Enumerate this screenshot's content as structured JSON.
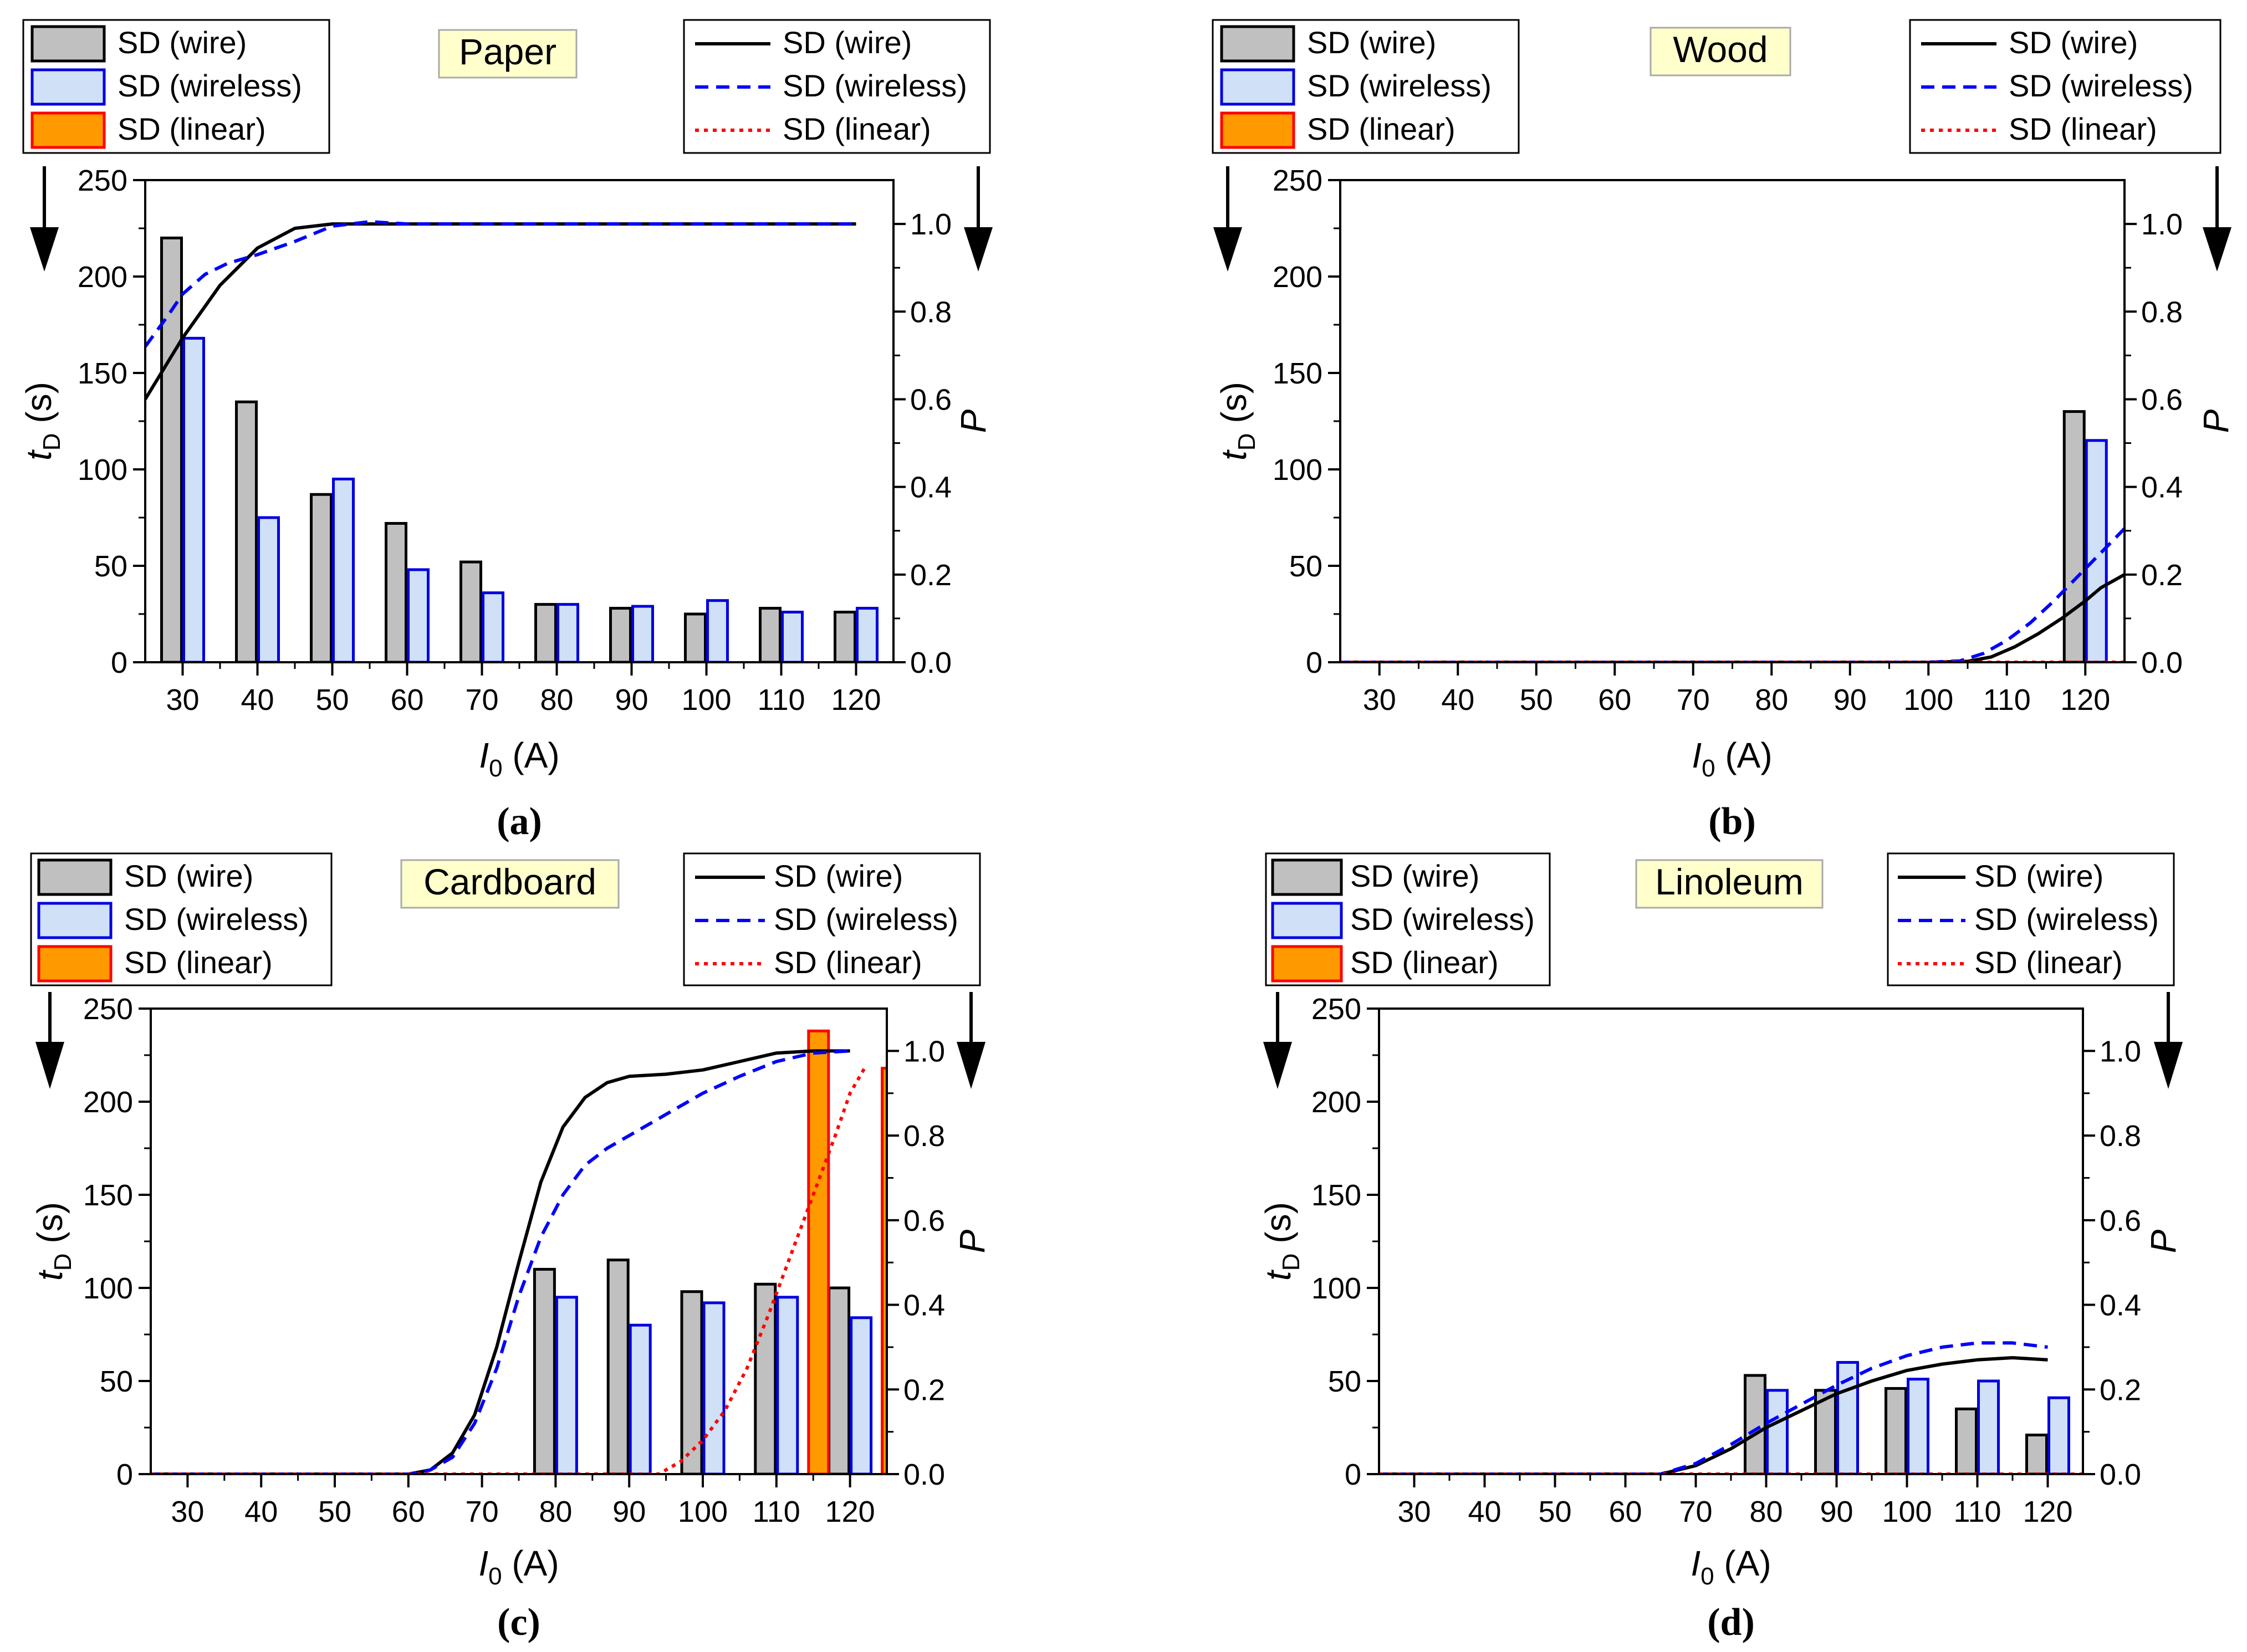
{
  "figure": {
    "colors": {
      "wire_bar_fill": "#c0c0c0",
      "wire_bar_edge": "#000000",
      "wireless_bar_fill": "#cfe0f7",
      "wireless_bar_edge": "#0000e0",
      "linear_bar_fill": "#ff9900",
      "linear_bar_edge": "#ff0000",
      "wire_line": "#000000",
      "wireless_line": "#0000ff",
      "linear_line": "#ff0000",
      "material_box": "#ffffcc"
    }
  },
  "chart_data": [
    {
      "type": "bar+line",
      "panel_label": "(a)",
      "title": "Paper",
      "xlabel_italic": "I",
      "xlabel_sub": "0",
      "xlabel_unit": "(A)",
      "ylabel_italic": "t",
      "ylabel_sub": "D",
      "ylabel_unit": "(s)",
      "y2label": "P",
      "xlim": [
        25,
        125
      ],
      "ylim": [
        0,
        250
      ],
      "y2lim": [
        0,
        1.1
      ],
      "xticks": [
        30,
        40,
        50,
        60,
        70,
        80,
        90,
        100,
        110,
        120
      ],
      "yticks": [
        0,
        50,
        100,
        150,
        200,
        250
      ],
      "y2ticks": [
        "0.0",
        "0.2",
        "0.4",
        "0.6",
        "0.8",
        "1.0"
      ],
      "legend_bars": [
        "SD (wire)",
        "SD (wireless)",
        "SD (linear)"
      ],
      "legend_lines": [
        "SD (wire)",
        "SD (wireless)",
        "SD (linear)"
      ],
      "bar_series": [
        {
          "name": "SD (wire)",
          "x": [
            30,
            40,
            50,
            60,
            70,
            80,
            90,
            100,
            110,
            120
          ],
          "values": [
            220,
            135,
            87,
            72,
            52,
            30,
            28,
            25,
            28,
            26
          ]
        },
        {
          "name": "SD (wireless)",
          "x": [
            30,
            40,
            50,
            60,
            70,
            80,
            90,
            100,
            110,
            120
          ],
          "values": [
            168,
            75,
            95,
            48,
            36,
            30,
            29,
            32,
            26,
            28
          ]
        },
        {
          "name": "SD (linear)",
          "x": [],
          "values": []
        }
      ],
      "line_series": [
        {
          "name": "SD (wire)",
          "x": [
            25,
            30,
            35,
            40,
            45,
            50,
            55,
            60,
            70,
            80,
            90,
            100,
            110,
            120
          ],
          "values": [
            0.6,
            0.74,
            0.86,
            0.945,
            0.99,
            1.0,
            1.0,
            1.0,
            1.0,
            1.0,
            1.0,
            1.0,
            1.0,
            1.0
          ]
        },
        {
          "name": "SD (wireless)",
          "x": [
            25,
            28,
            30,
            33,
            36,
            40,
            45,
            50,
            55,
            60,
            70,
            80,
            90,
            100,
            110,
            120
          ],
          "values": [
            0.72,
            0.79,
            0.84,
            0.885,
            0.91,
            0.93,
            0.96,
            0.995,
            1.005,
            1.0,
            1.0,
            1.0,
            1.0,
            1.0,
            1.0,
            1.0
          ]
        },
        {
          "name": "SD (linear)",
          "x": [],
          "values": []
        }
      ]
    },
    {
      "type": "bar+line",
      "panel_label": "(b)",
      "title": "Wood",
      "xlabel_italic": "I",
      "xlabel_sub": "0",
      "xlabel_unit": "(A)",
      "ylabel_italic": "t",
      "ylabel_sub": "D",
      "ylabel_unit": "(s)",
      "y2label": "P",
      "xlim": [
        25,
        125
      ],
      "ylim": [
        0,
        250
      ],
      "y2lim": [
        0,
        1.1
      ],
      "xticks": [
        30,
        40,
        50,
        60,
        70,
        80,
        90,
        100,
        110,
        120
      ],
      "yticks": [
        0,
        50,
        100,
        150,
        200,
        250
      ],
      "y2ticks": [
        "0.0",
        "0.2",
        "0.4",
        "0.6",
        "0.8",
        "1.0"
      ],
      "legend_bars": [
        "SD (wire)",
        "SD (wireless)",
        "SD (linear)"
      ],
      "legend_lines": [
        "SD (wire)",
        "SD (wireless)",
        "SD (linear)"
      ],
      "bar_series": [
        {
          "name": "SD (wire)",
          "x": [
            120
          ],
          "values": [
            130
          ]
        },
        {
          "name": "SD (wireless)",
          "x": [
            120
          ],
          "values": [
            115
          ]
        },
        {
          "name": "SD (linear)",
          "x": [],
          "values": []
        }
      ],
      "line_series": [
        {
          "name": "SD (wire)",
          "x": [
            25,
            100,
            105,
            108,
            111,
            114,
            117,
            120,
            122,
            125
          ],
          "values": [
            0.0,
            0.0,
            0.002,
            0.012,
            0.035,
            0.065,
            0.1,
            0.14,
            0.17,
            0.2
          ]
        },
        {
          "name": "SD (wireless)",
          "x": [
            25,
            100,
            104,
            107,
            110,
            113,
            116,
            119,
            122,
            125
          ],
          "values": [
            0.0,
            0.0,
            0.003,
            0.02,
            0.05,
            0.09,
            0.14,
            0.195,
            0.25,
            0.305
          ]
        },
        {
          "name": "SD (linear)",
          "x": [
            25,
            125
          ],
          "values": [
            0.0,
            0.0
          ]
        }
      ]
    },
    {
      "type": "bar+line",
      "panel_label": "(c)",
      "title": "Cardboard",
      "xlabel_italic": "I",
      "xlabel_sub": "0",
      "xlabel_unit": "(A)",
      "ylabel_italic": "t",
      "ylabel_sub": "D",
      "ylabel_unit": "(s)",
      "y2label": "P",
      "xlim": [
        25,
        125
      ],
      "ylim": [
        0,
        250
      ],
      "y2lim": [
        0,
        1.1
      ],
      "xticks": [
        30,
        40,
        50,
        60,
        70,
        80,
        90,
        100,
        110,
        120
      ],
      "yticks": [
        0,
        50,
        100,
        150,
        200,
        250
      ],
      "y2ticks": [
        "0.0",
        "0.2",
        "0.4",
        "0.6",
        "0.8",
        "1.0"
      ],
      "legend_bars": [
        "SD (wire)",
        "SD (wireless)",
        "SD (linear)"
      ],
      "legend_lines": [
        "SD (wire)",
        "SD (wireless)",
        "SD (linear)"
      ],
      "bar_series": [
        {
          "name": "SD (wire)",
          "x": [
            80,
            90,
            100,
            110,
            120
          ],
          "values": [
            110,
            115,
            98,
            102,
            100
          ]
        },
        {
          "name": "SD (wireless)",
          "x": [
            80,
            90,
            100,
            110,
            120
          ],
          "values": [
            95,
            80,
            92,
            95,
            84
          ]
        },
        {
          "name": "SD (linear)",
          "x": [
            110,
            120
          ],
          "values": [
            238,
            218
          ]
        }
      ],
      "line_series": [
        {
          "name": "SD (wire)",
          "x": [
            25,
            60,
            63,
            66,
            69,
            72,
            75,
            78,
            81,
            84,
            87,
            90,
            95,
            100,
            105,
            110,
            115,
            120
          ],
          "values": [
            0.0,
            0.0,
            0.01,
            0.05,
            0.14,
            0.3,
            0.5,
            0.69,
            0.82,
            0.89,
            0.925,
            0.94,
            0.945,
            0.955,
            0.975,
            0.995,
            1.0,
            1.0
          ]
        },
        {
          "name": "SD (wireless)",
          "x": [
            25,
            60,
            63,
            66,
            69,
            72,
            75,
            78,
            81,
            84,
            87,
            90,
            95,
            100,
            105,
            110,
            115,
            120
          ],
          "values": [
            0.0,
            0.0,
            0.01,
            0.04,
            0.12,
            0.25,
            0.42,
            0.56,
            0.66,
            0.73,
            0.77,
            0.8,
            0.85,
            0.9,
            0.94,
            0.975,
            0.995,
            1.0
          ]
        },
        {
          "name": "SD (linear)",
          "x": [
            25,
            94,
            97,
            100,
            103,
            106,
            109,
            112,
            115,
            118,
            120,
            122
          ],
          "values": [
            0.0,
            0.0,
            0.03,
            0.08,
            0.15,
            0.25,
            0.38,
            0.52,
            0.66,
            0.8,
            0.9,
            0.96
          ]
        }
      ]
    },
    {
      "type": "bar+line",
      "panel_label": "(d)",
      "title": "Linoleum",
      "xlabel_italic": "I",
      "xlabel_sub": "0",
      "xlabel_unit": "(A)",
      "ylabel_italic": "t",
      "ylabel_sub": "D",
      "ylabel_unit": "(s)",
      "y2label": "P",
      "xlim": [
        25,
        125
      ],
      "ylim": [
        0,
        250
      ],
      "y2lim": [
        0,
        1.1
      ],
      "xticks": [
        30,
        40,
        50,
        60,
        70,
        80,
        90,
        100,
        110,
        120
      ],
      "yticks": [
        0,
        50,
        100,
        150,
        200,
        250
      ],
      "y2ticks": [
        "0.0",
        "0.2",
        "0.4",
        "0.6",
        "0.8",
        "1.0"
      ],
      "legend_bars": [
        "SD (wire)",
        "SD (wireless)",
        "SD (linear)"
      ],
      "legend_lines": [
        "SD (wire)",
        "SD (wireless)",
        "SD (linear)"
      ],
      "bar_series": [
        {
          "name": "SD (wire)",
          "x": [
            80,
            90,
            100,
            110,
            120
          ],
          "values": [
            53,
            45,
            46,
            35,
            21
          ]
        },
        {
          "name": "SD (wireless)",
          "x": [
            80,
            90,
            100,
            110,
            120
          ],
          "values": [
            45,
            60,
            51,
            50,
            41
          ]
        },
        {
          "name": "SD (linear)",
          "x": [],
          "values": []
        }
      ],
      "line_series": [
        {
          "name": "SD (wire)",
          "x": [
            25,
            65,
            70,
            75,
            80,
            85,
            90,
            95,
            100,
            105,
            110,
            115,
            120
          ],
          "values": [
            0.0,
            0.0,
            0.02,
            0.06,
            0.11,
            0.15,
            0.19,
            0.22,
            0.245,
            0.26,
            0.27,
            0.275,
            0.27
          ]
        },
        {
          "name": "SD (wireless)",
          "x": [
            25,
            65,
            70,
            75,
            80,
            85,
            90,
            95,
            100,
            105,
            110,
            115,
            120
          ],
          "values": [
            0.0,
            0.0,
            0.025,
            0.07,
            0.12,
            0.165,
            0.21,
            0.25,
            0.28,
            0.3,
            0.31,
            0.31,
            0.3
          ]
        },
        {
          "name": "SD (linear)",
          "x": [
            25,
            125
          ],
          "values": [
            0.0,
            0.0
          ]
        }
      ]
    }
  ]
}
